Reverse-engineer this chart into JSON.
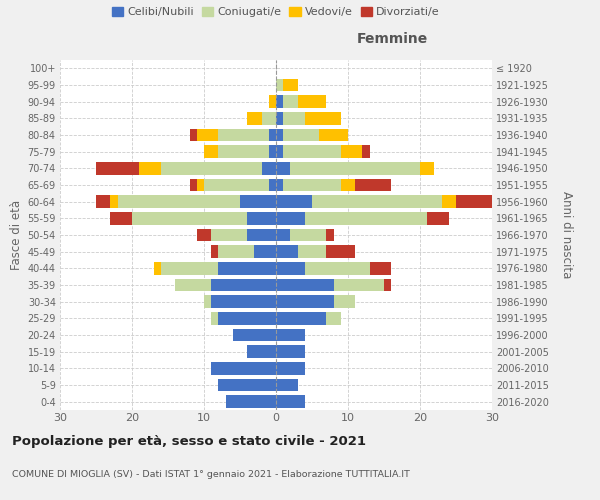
{
  "age_groups": [
    "0-4",
    "5-9",
    "10-14",
    "15-19",
    "20-24",
    "25-29",
    "30-34",
    "35-39",
    "40-44",
    "45-49",
    "50-54",
    "55-59",
    "60-64",
    "65-69",
    "70-74",
    "75-79",
    "80-84",
    "85-89",
    "90-94",
    "95-99",
    "100+"
  ],
  "birth_years": [
    "2016-2020",
    "2011-2015",
    "2006-2010",
    "2001-2005",
    "1996-2000",
    "1991-1995",
    "1986-1990",
    "1981-1985",
    "1976-1980",
    "1971-1975",
    "1966-1970",
    "1961-1965",
    "1956-1960",
    "1951-1955",
    "1946-1950",
    "1941-1945",
    "1936-1940",
    "1931-1935",
    "1926-1930",
    "1921-1925",
    "≤ 1920"
  ],
  "male": {
    "celibi": [
      7,
      8,
      9,
      4,
      6,
      8,
      9,
      9,
      8,
      3,
      4,
      4,
      5,
      1,
      2,
      1,
      1,
      0,
      0,
      0,
      0
    ],
    "coniugati": [
      0,
      0,
      0,
      0,
      0,
      1,
      1,
      5,
      8,
      5,
      5,
      16,
      17,
      9,
      14,
      7,
      7,
      2,
      0,
      0,
      0
    ],
    "vedovi": [
      0,
      0,
      0,
      0,
      0,
      0,
      0,
      0,
      1,
      0,
      0,
      0,
      1,
      1,
      3,
      2,
      3,
      2,
      1,
      0,
      0
    ],
    "divorziati": [
      0,
      0,
      0,
      0,
      0,
      0,
      0,
      0,
      0,
      1,
      2,
      3,
      2,
      1,
      6,
      0,
      1,
      0,
      0,
      0,
      0
    ]
  },
  "female": {
    "nubili": [
      4,
      3,
      4,
      4,
      4,
      7,
      8,
      8,
      4,
      3,
      2,
      4,
      5,
      1,
      2,
      1,
      1,
      1,
      1,
      0,
      0
    ],
    "coniugate": [
      0,
      0,
      0,
      0,
      0,
      2,
      3,
      7,
      9,
      4,
      5,
      17,
      18,
      8,
      18,
      8,
      5,
      3,
      2,
      1,
      0
    ],
    "vedove": [
      0,
      0,
      0,
      0,
      0,
      0,
      0,
      0,
      0,
      0,
      0,
      0,
      2,
      2,
      2,
      3,
      4,
      5,
      4,
      2,
      0
    ],
    "divorziate": [
      0,
      0,
      0,
      0,
      0,
      0,
      0,
      1,
      3,
      4,
      1,
      3,
      5,
      5,
      0,
      1,
      0,
      0,
      0,
      0,
      0
    ]
  },
  "colors": {
    "celibi": "#4472c4",
    "coniugati": "#c5d9a0",
    "vedovi": "#ffc000",
    "divorziati": "#c0382b"
  },
  "xlim": 30,
  "title": "Popolazione per età, sesso e stato civile - 2021",
  "subtitle": "COMUNE DI MIOGLIA (SV) - Dati ISTAT 1° gennaio 2021 - Elaborazione TUTTITALIA.IT",
  "ylabel_left": "Fasce di età",
  "ylabel_right": "Anni di nascita",
  "xlabel_right": "Femmine",
  "bg_color": "#f0f0f0",
  "plot_bg": "#ffffff"
}
